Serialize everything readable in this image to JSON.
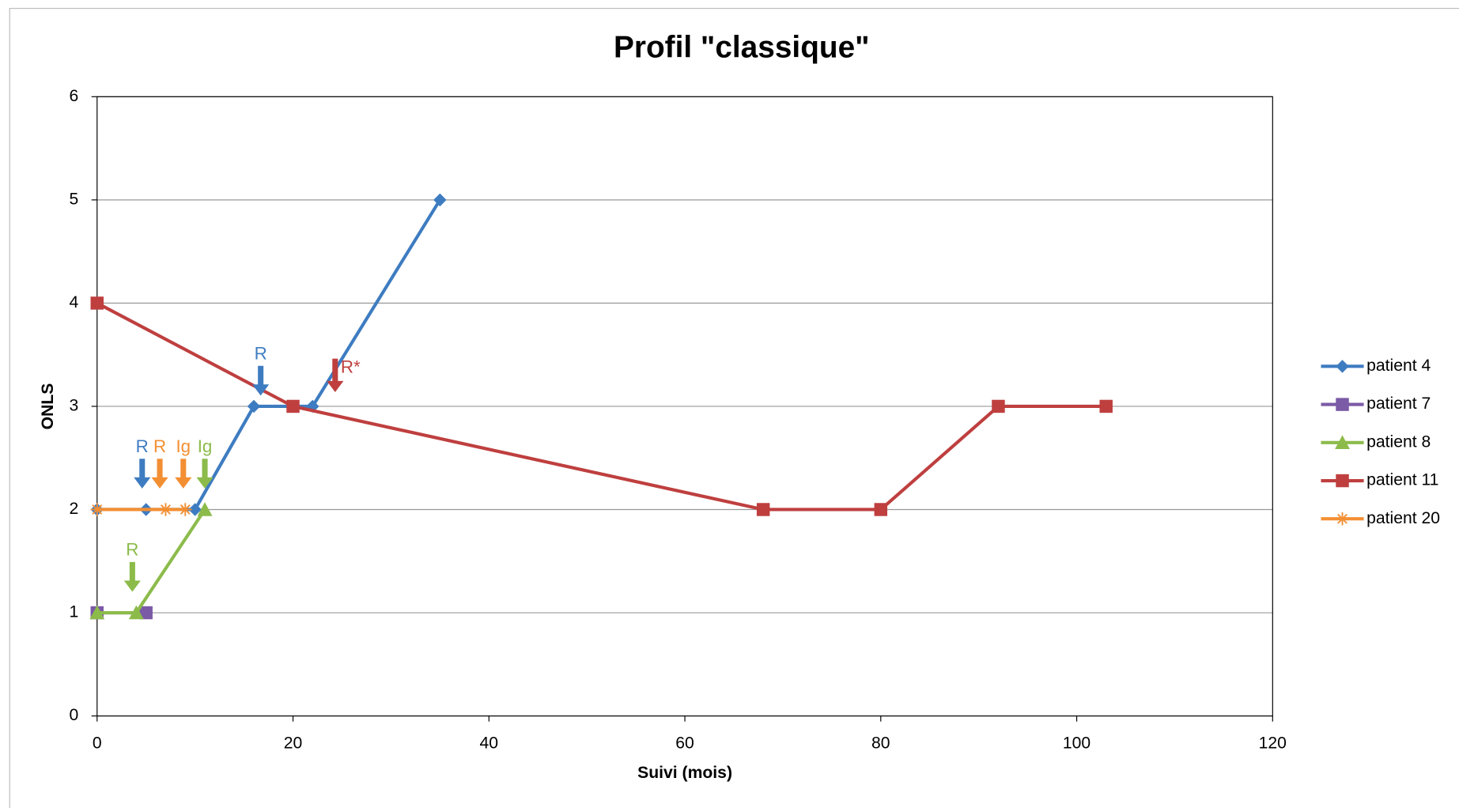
{
  "chart_data": {
    "type": "line",
    "title": "Profil \"classique\"",
    "x_label": "Suivi (mois)",
    "y_label": "ONLS",
    "xlim": [
      0,
      120
    ],
    "xticks": [
      0,
      20,
      40,
      60,
      80,
      100,
      120
    ],
    "ylim": [
      0,
      6
    ],
    "yticks": [
      0,
      1,
      2,
      3,
      4,
      5,
      6
    ],
    "grid": true,
    "legend": "right",
    "series": [
      {
        "name": "patient 4",
        "color": "#3e7cc1",
        "marker": "diamond",
        "x": [
          0,
          5,
          10,
          16,
          22,
          35
        ],
        "values": [
          2,
          2,
          2,
          3,
          3,
          5
        ]
      },
      {
        "name": "patient 7",
        "color": "#7b5aa6",
        "marker": "square",
        "x": [
          0,
          5
        ],
        "values": [
          1,
          1
        ]
      },
      {
        "name": "patient 8",
        "color": "#8cbb4a",
        "marker": "triangle",
        "x": [
          0,
          4,
          11
        ],
        "values": [
          1,
          1,
          2
        ]
      },
      {
        "name": "patient 11",
        "color": "#bf3f3f",
        "marker": "square",
        "x": [
          0,
          20,
          68,
          80,
          92,
          103
        ],
        "values": [
          4,
          3,
          2,
          2,
          3,
          3
        ]
      },
      {
        "name": "patient 20",
        "color": "#f38f33",
        "marker": "asterisk",
        "x": [
          0,
          7,
          9
        ],
        "values": [
          2,
          2,
          2
        ]
      }
    ],
    "annotations": [
      {
        "text": "R",
        "color": "#3e7cc1",
        "x": 16.7,
        "y": 3.5
      },
      {
        "text": "R*",
        "color": "#bf3f3f",
        "x": 24.3,
        "y": 3.3
      },
      {
        "text": "R",
        "color": "#3e7cc1",
        "x": 4.6,
        "y": 2.6
      },
      {
        "text": "R",
        "color": "#f38f33",
        "x": 6.4,
        "y": 2.6
      },
      {
        "text": "Ig",
        "color": "#f38f33",
        "x": 8.8,
        "y": 2.6
      },
      {
        "text": "Ig",
        "color": "#8cbb4a",
        "x": 11,
        "y": 2.6
      },
      {
        "text": "R",
        "color": "#8cbb4a",
        "x": 3.6,
        "y": 1.6
      }
    ]
  }
}
